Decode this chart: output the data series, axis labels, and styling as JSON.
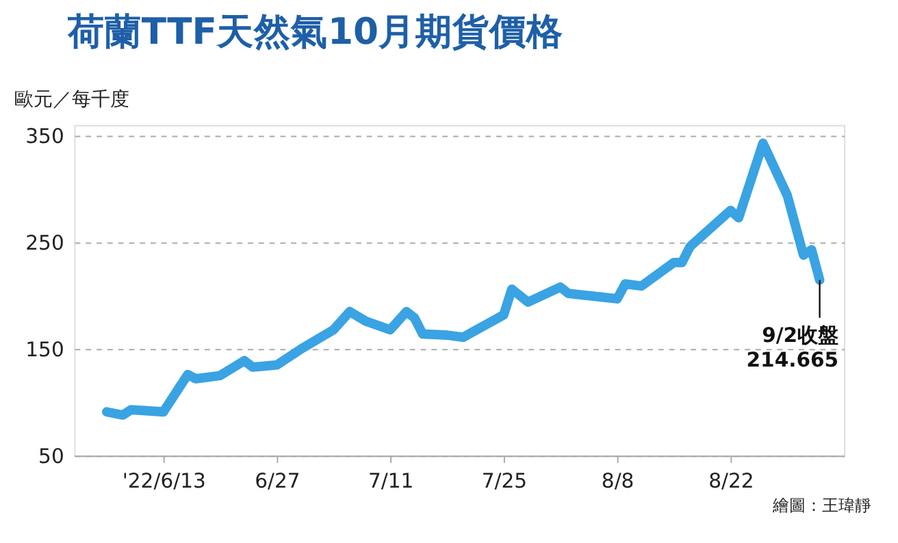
{
  "chart_data": {
    "type": "line",
    "title": "荷蘭TTF天然氣10月期貨價格",
    "ylabel": "歐元／每千度",
    "x": [
      "2022-06-06",
      "2022-06-08",
      "2022-06-09",
      "2022-06-13",
      "2022-06-16",
      "2022-06-17",
      "2022-06-20",
      "2022-06-23",
      "2022-06-24",
      "2022-06-27",
      "2022-06-30",
      "2022-07-04",
      "2022-07-06",
      "2022-07-08",
      "2022-07-11",
      "2022-07-13",
      "2022-07-14",
      "2022-07-15",
      "2022-07-18",
      "2022-07-20",
      "2022-07-25",
      "2022-07-26",
      "2022-07-28",
      "2022-08-01",
      "2022-08-02",
      "2022-08-08",
      "2022-08-09",
      "2022-08-11",
      "2022-08-15",
      "2022-08-16",
      "2022-08-17",
      "2022-08-22",
      "2022-08-23",
      "2022-08-26",
      "2022-08-29",
      "2022-08-31",
      "2022-09-01",
      "2022-09-02"
    ],
    "series": [
      {
        "color": "#3aa3e3",
        "values": [
          91,
          88,
          93,
          91,
          126,
          122,
          125,
          139,
          133,
          135,
          150,
          168,
          185,
          176,
          168,
          185,
          179,
          164,
          163,
          161,
          182,
          206,
          194,
          208,
          202,
          197,
          211,
          209,
          231,
          231,
          246,
          280,
          273,
          343,
          294,
          238,
          243,
          214.665
        ]
      }
    ],
    "xlim": [
      "2022-06-02",
      "2022-09-05"
    ],
    "xticks": [
      {
        "value": "2022-06-13",
        "label": "'22/6/13"
      },
      {
        "value": "2022-06-27",
        "label": "6/27"
      },
      {
        "value": "2022-07-11",
        "label": "7/11"
      },
      {
        "value": "2022-07-25",
        "label": "7/25"
      },
      {
        "value": "2022-08-08",
        "label": "8/8"
      },
      {
        "value": "2022-08-22",
        "label": "8/22"
      }
    ],
    "ylim": [
      50,
      360
    ],
    "yticks": [
      50,
      150,
      250,
      350
    ],
    "grid": "y",
    "line_style": "solid",
    "annotations": [
      {
        "text": "9/2收盤\n214.665",
        "x": "2022-09-02",
        "y": 214.665
      },
      "繪圖：王瑋靜"
    ]
  }
}
